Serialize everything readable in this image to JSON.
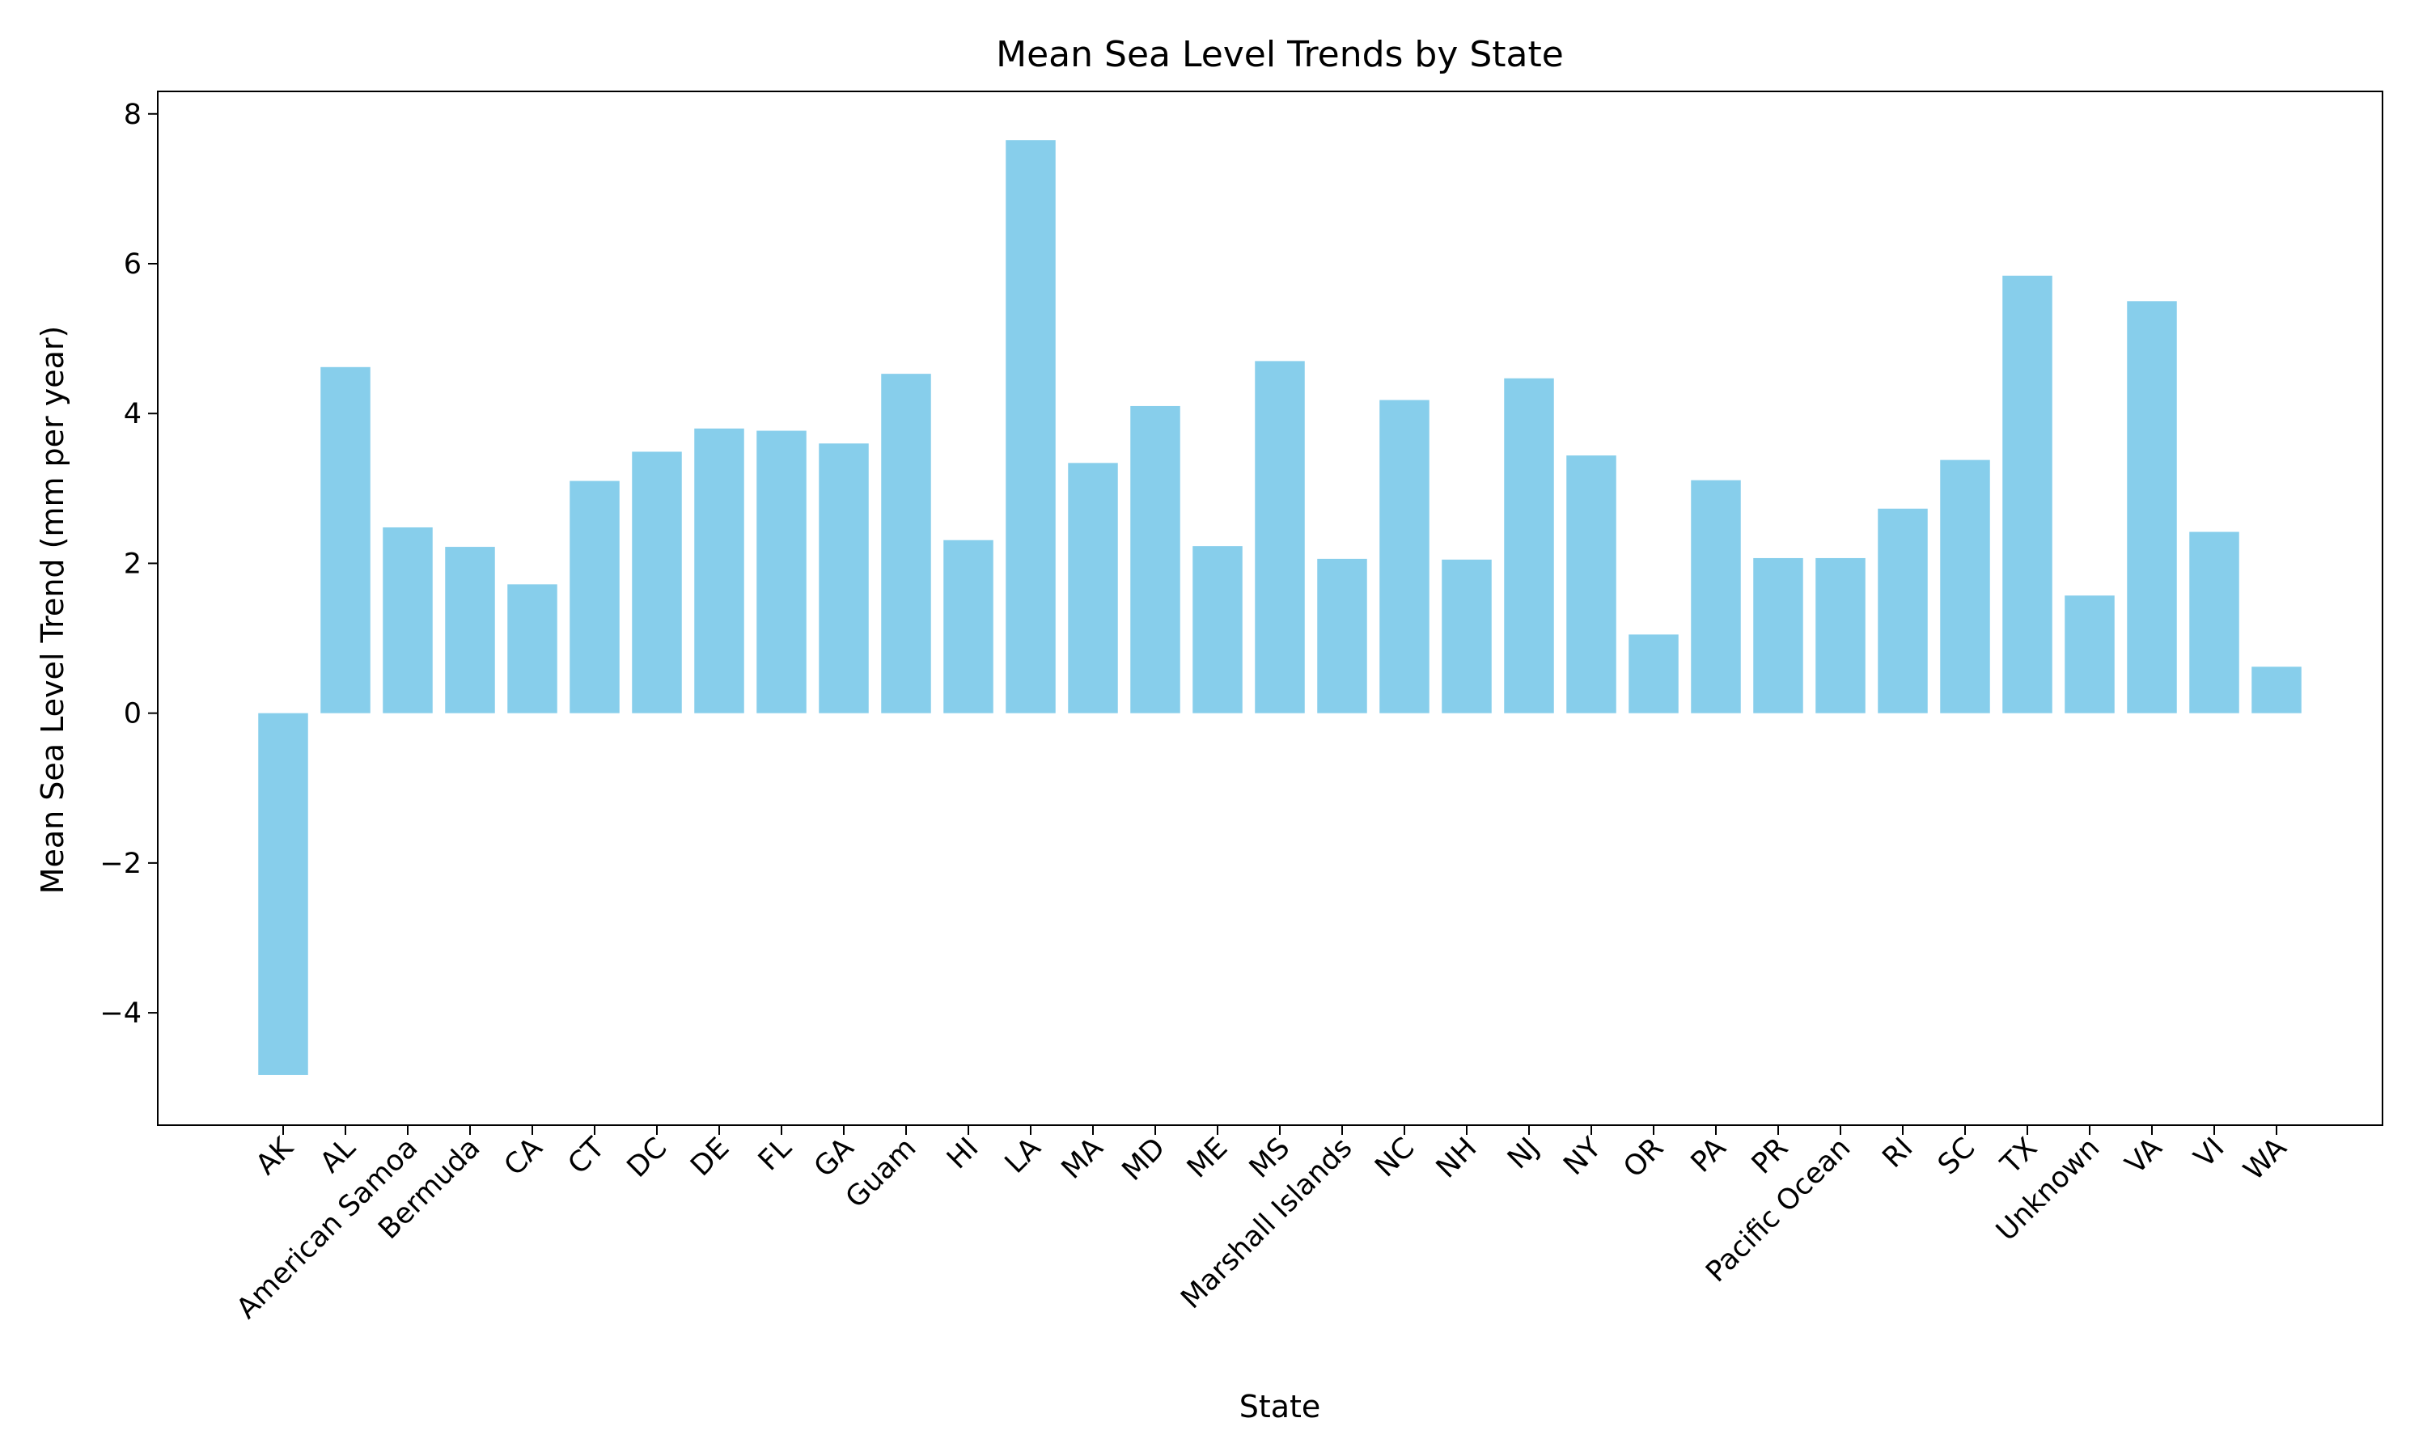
{
  "chart_data": {
    "type": "bar",
    "title": "Mean Sea Level Trends by State",
    "xlabel": "State",
    "ylabel": "Mean Sea Level Trend (mm per year)",
    "ylim": [
      -5.5,
      8.3
    ],
    "yticks": [
      -4,
      -2,
      0,
      2,
      4,
      6,
      8
    ],
    "ytick_labels": [
      "−4",
      "−2",
      "0",
      "2",
      "4",
      "6",
      "8"
    ],
    "grid": false,
    "legend": "none",
    "bar_color": "#87CEEB",
    "categories": [
      "AK",
      "AL",
      "American Samoa",
      "Bermuda",
      "CA",
      "CT",
      "DC",
      "DE",
      "FL",
      "GA",
      "Guam",
      "HI",
      "LA",
      "MA",
      "MD",
      "ME",
      "MS",
      "Marshall Islands",
      "NC",
      "NH",
      "NJ",
      "NY",
      "OR",
      "PA",
      "PR",
      "Pacific Ocean",
      "RI",
      "SC",
      "TX",
      "Unknown",
      "VA",
      "VI",
      "WA"
    ],
    "values": [
      -4.83,
      4.62,
      2.48,
      2.22,
      1.72,
      3.1,
      3.49,
      3.8,
      3.77,
      3.6,
      4.53,
      2.31,
      7.65,
      3.34,
      4.1,
      2.23,
      4.7,
      2.06,
      4.18,
      2.05,
      4.47,
      3.44,
      1.05,
      3.11,
      2.07,
      2.07,
      2.73,
      3.38,
      5.84,
      1.57,
      5.5,
      2.42,
      0.62
    ]
  }
}
